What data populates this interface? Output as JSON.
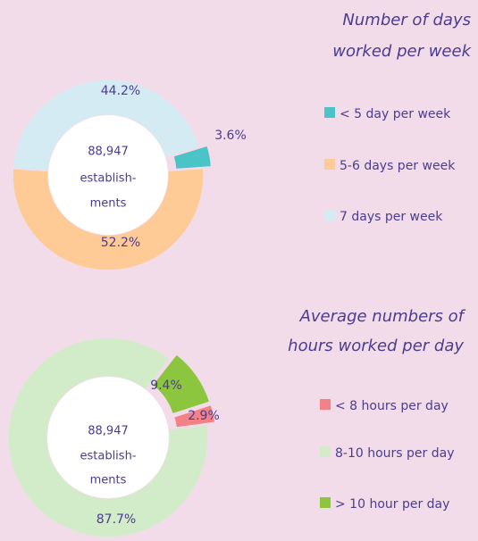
{
  "chart_data": [
    {
      "type": "donut",
      "title": [
        "Number of days",
        "worked per week"
      ],
      "categories": [
        "< 5 day per week",
        "5-6 days per week",
        "7 days per week"
      ],
      "values": [
        3.6,
        52.2,
        44.2
      ],
      "value_labels": [
        "3.6%",
        "52.2%",
        "44.2%"
      ],
      "colors": [
        "#4bc4c8",
        "#fecb96",
        "#d4ebf3"
      ],
      "center_text": [
        "88,947",
        "establish-",
        "ments"
      ]
    },
    {
      "type": "donut",
      "title": [
        "Average numbers of",
        "hours worked per day"
      ],
      "categories": [
        "< 8 hours per day",
        "8-10 hours per day",
        "> 10 hour per day"
      ],
      "values": [
        2.9,
        87.7,
        9.4
      ],
      "value_labels": [
        "2.9%",
        "87.7%",
        "9.4%"
      ],
      "colors": [
        "#f28286",
        "#d2ecca",
        "#8cc63f"
      ],
      "center_text": [
        "88,947",
        "establish-",
        "ments"
      ]
    }
  ]
}
